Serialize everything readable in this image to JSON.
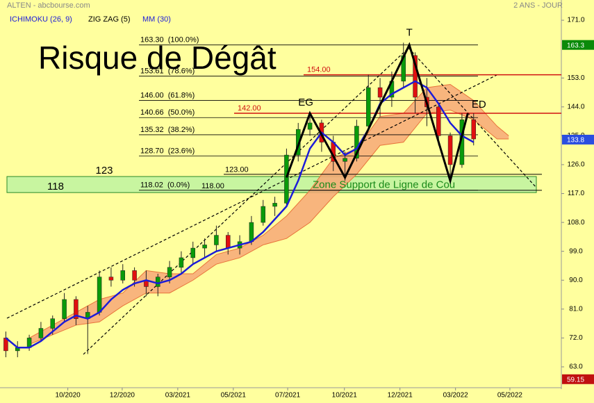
{
  "chart_data": {
    "type": "candlestick",
    "title": "Risque de Dégât",
    "source": "ALTEN - abcbourse.com",
    "period": "2 ANS - JOUR",
    "x": [
      1,
      3,
      5,
      7,
      9,
      11,
      13,
      15,
      17,
      19,
      21,
      23,
      25,
      27,
      29,
      31,
      33,
      35,
      37,
      39,
      41,
      43,
      45,
      47,
      49,
      51,
      53,
      55,
      57,
      59,
      61,
      63,
      65,
      67,
      69,
      71,
      73,
      75,
      77,
      79,
      81
    ],
    "open": [
      72,
      68,
      69,
      72,
      75,
      78,
      84,
      78,
      80,
      91,
      90,
      93,
      90,
      88,
      91,
      94,
      97,
      100,
      101,
      104,
      100,
      102,
      108,
      113,
      114,
      129,
      137,
      139,
      133,
      127,
      128,
      138,
      150,
      147,
      152,
      160,
      147,
      144,
      135,
      126,
      140
    ],
    "high": [
      74,
      71,
      73,
      77,
      79,
      86,
      85,
      82,
      93,
      94,
      95,
      94,
      93,
      92,
      96,
      99,
      102,
      103,
      107,
      105,
      104,
      110,
      115,
      116,
      131,
      139,
      142,
      140,
      135,
      130,
      140,
      154,
      153,
      155,
      164,
      161,
      153,
      145,
      136,
      142,
      142
    ],
    "low": [
      66,
      66,
      68,
      71,
      73,
      77,
      76,
      67,
      79,
      88,
      89,
      88,
      85,
      85,
      89,
      92,
      95,
      97,
      99,
      98,
      98,
      101,
      107,
      110,
      113,
      127,
      135,
      130,
      124,
      121,
      127,
      137,
      141,
      144,
      150,
      142,
      138,
      132,
      121,
      125,
      132
    ],
    "close": [
      68,
      69,
      72,
      75,
      78,
      84,
      78,
      80,
      91,
      90,
      93,
      90,
      88,
      91,
      94,
      97,
      100,
      101,
      104,
      100,
      102,
      108,
      113,
      114,
      129,
      137,
      139,
      133,
      127,
      128,
      138,
      150,
      147,
      152,
      160,
      147,
      144,
      135,
      126,
      140,
      134
    ],
    "up_color": "#0a9a0a",
    "down_color": "#e01010",
    "series": [
      {
        "name": "MM (30)",
        "color": "#1c1cd8",
        "values": [
          72,
          69,
          69,
          71,
          74,
          77,
          79,
          78,
          80,
          84,
          87,
          89,
          90,
          89,
          90,
          92,
          95,
          97,
          99,
          100,
          101,
          102,
          105,
          109,
          113,
          121,
          131,
          136,
          133,
          129,
          131,
          137,
          145,
          148,
          150,
          152,
          150,
          145,
          139,
          135,
          133
        ]
      }
    ],
    "ichimoku": {
      "name": "ICHIMOKU (26, 9)",
      "color": "#1c1cd8",
      "fill": "#f7a877",
      "x": [
        5,
        9,
        13,
        17,
        21,
        25,
        29,
        33,
        37,
        41,
        45,
        49,
        53,
        57,
        61,
        65,
        69,
        73,
        77,
        81,
        85,
        87
      ],
      "upper": [
        72,
        76,
        80,
        84,
        86,
        93,
        92,
        92,
        98,
        100,
        104,
        110,
        118,
        128,
        131,
        141,
        142,
        150,
        151,
        146,
        138,
        135
      ],
      "lower": [
        70,
        73,
        76,
        77,
        82,
        86,
        86,
        90,
        95,
        97,
        101,
        103,
        108,
        116,
        123,
        132,
        133,
        142,
        143,
        140,
        134,
        134
      ]
    },
    "zigzag": {
      "name": "ZIG ZAG (5)",
      "color": "#000000",
      "x": [
        49,
        53,
        59,
        70,
        77,
        80
      ],
      "values": [
        122,
        142,
        122,
        163.3,
        121,
        142
      ]
    },
    "pattern_labels": [
      "EG",
      "T",
      "ED"
    ],
    "fibonacci": [
      {
        "value": 163.3,
        "label": "163.30  (100.0%)"
      },
      {
        "value": 153.61,
        "label": "153.61  (78.6%)"
      },
      {
        "value": 146.0,
        "label": "146.00  (61.8%)"
      },
      {
        "value": 140.66,
        "label": "140.66  (50.0%)"
      },
      {
        "value": 135.32,
        "label": "135.32  (38.2%)"
      },
      {
        "value": 128.7,
        "label": "128.70  (23.6%)"
      },
      {
        "value": 118.02,
        "label": "118.02  (0.0%)"
      }
    ],
    "resistances": [
      {
        "value": 154,
        "label": "154.00"
      },
      {
        "value": 142,
        "label": "142.00"
      }
    ],
    "supports": [
      {
        "value": 123,
        "label": "123.00"
      },
      {
        "value": 118,
        "label": "118.00"
      }
    ],
    "support_marks": [
      123,
      118
    ],
    "zone": {
      "label": "Zone Support de Ligne de Cou",
      "range": [
        117.3,
        122.3
      ]
    },
    "price_flags": [
      {
        "value": 163.3,
        "color": "#0a8a0a"
      },
      {
        "value": 133.8,
        "color": "#2a4ee0"
      },
      {
        "value": 59.15,
        "color": "#c01010"
      }
    ],
    "ylim": [
      56.5,
      177.3
    ],
    "yticks": [
      {
        "value": 171,
        "label": "171.0"
      },
      {
        "value": 153,
        "label": "153.0"
      },
      {
        "value": 144,
        "label": "144.0"
      },
      {
        "value": 135,
        "label": "135.0"
      },
      {
        "value": 126,
        "label": "126.0"
      },
      {
        "value": 117,
        "label": "117.0"
      },
      {
        "value": 108,
        "label": "108.0"
      },
      {
        "value": 99,
        "label": "99.0"
      },
      {
        "value": 90,
        "label": "90.0"
      },
      {
        "value": 81,
        "label": "81.0"
      },
      {
        "value": 72,
        "label": "72.0"
      },
      {
        "value": 63,
        "label": "63.0"
      }
    ],
    "xlim": [
      0,
      96
    ],
    "xticks": [
      {
        "value": 11.6,
        "label": "10/2020"
      },
      {
        "value": 20.9,
        "label": "12/2020"
      },
      {
        "value": 30.4,
        "label": "03/2021"
      },
      {
        "value": 39.9,
        "label": "05/2021"
      },
      {
        "value": 49.2,
        "label": "07/2021"
      },
      {
        "value": 58.9,
        "label": "10/2021"
      },
      {
        "value": 68.4,
        "label": "12/2021"
      },
      {
        "value": 77.9,
        "label": "03/2022"
      },
      {
        "value": 87.2,
        "label": "05/2022"
      }
    ]
  }
}
